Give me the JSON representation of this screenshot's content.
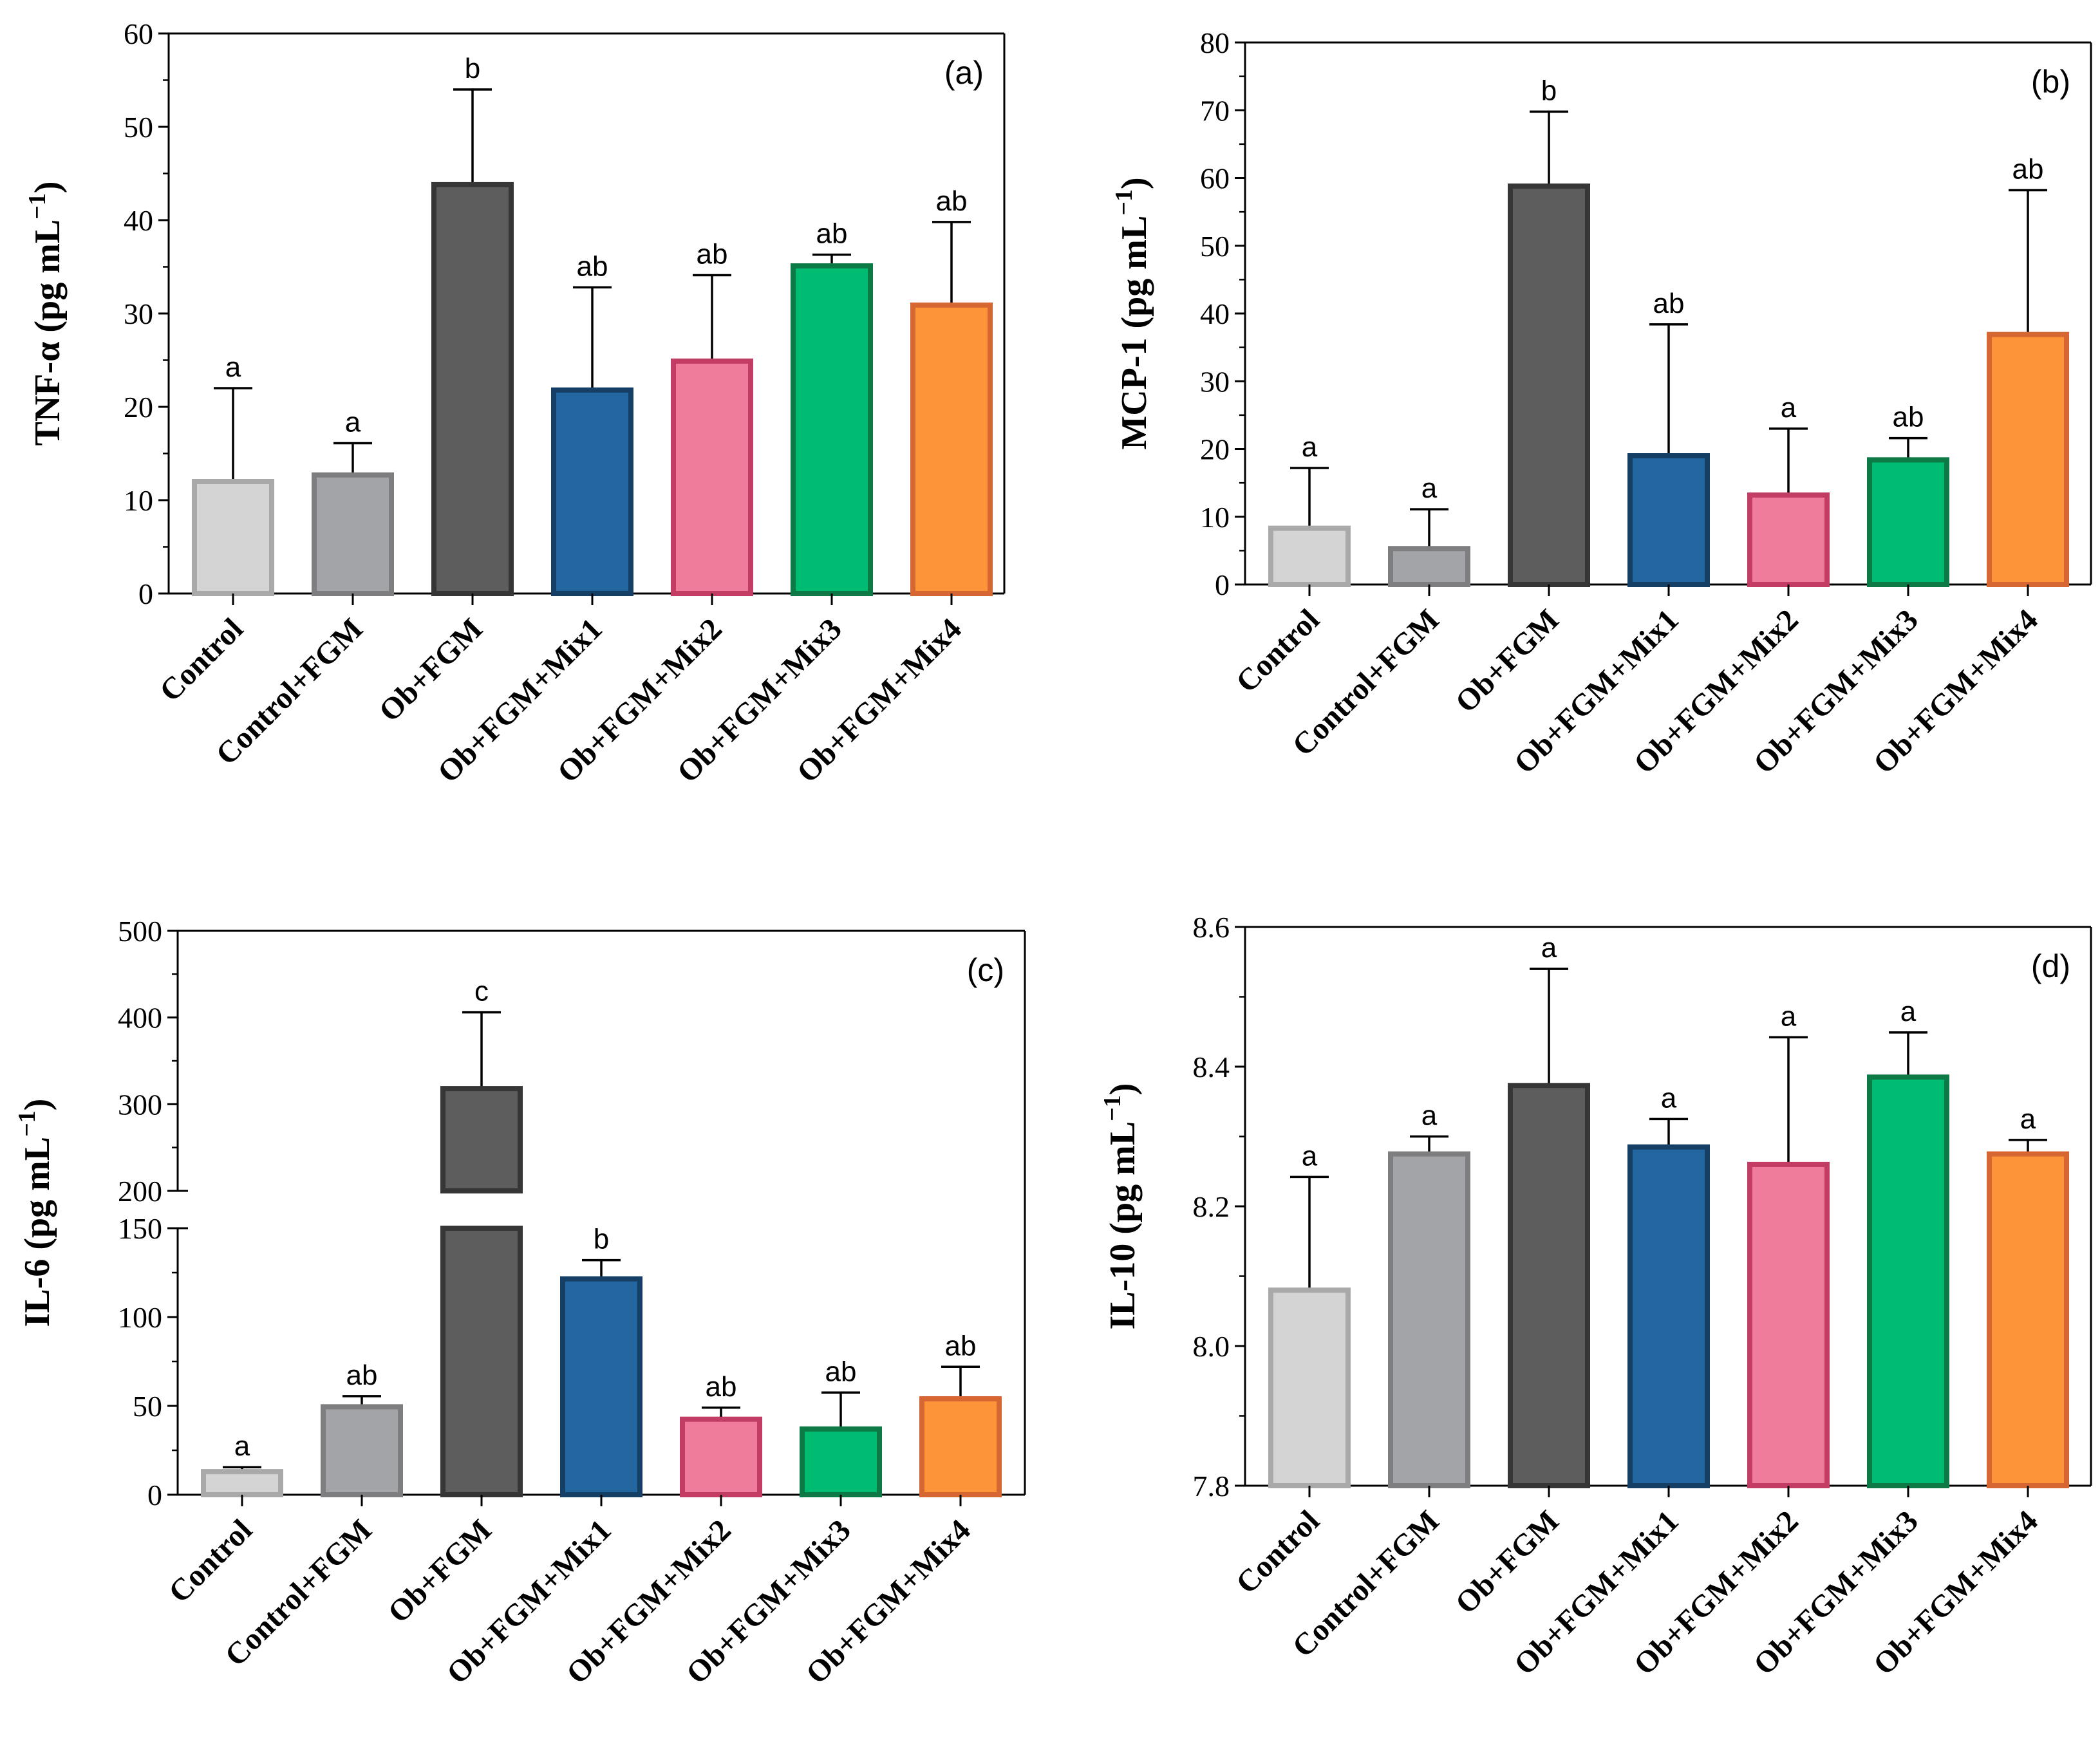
{
  "chart_data": [
    {
      "type": "bar",
      "panel_label": "(a)",
      "ylabel": "TNF-α (pg mL",
      "ylabel_sup": "−1",
      "ylabel_close": ")",
      "ylim": [
        0,
        60
      ],
      "yticks": [
        "0",
        "10",
        "20",
        "30",
        "40",
        "50",
        "60"
      ],
      "categories": [
        "Control",
        "Control+FGM",
        "Ob+FGM",
        "Ob+FGM+Mix1",
        "Ob+FGM+Mix2",
        "Ob+FGM+Mix3",
        "Ob+FGM+Mix4"
      ],
      "values": [
        12,
        12.7,
        43.8,
        21.8,
        24.9,
        35.1,
        30.9
      ],
      "errors": [
        10,
        3.4,
        10.2,
        11,
        9.2,
        1.2,
        8.9
      ],
      "significance": [
        "a",
        "a",
        "b",
        "ab",
        "ab",
        "ab",
        "ab"
      ]
    },
    {
      "type": "bar",
      "panel_label": "(b)",
      "ylabel": "MCP-1 (pg mL",
      "ylabel_sup": "−1",
      "ylabel_close": ")",
      "ylim": [
        0,
        80
      ],
      "yticks": [
        "0",
        "10",
        "20",
        "30",
        "40",
        "50",
        "60",
        "70",
        "80"
      ],
      "categories": [
        "Control",
        "Control+FGM",
        "Ob+FGM",
        "Ob+FGM+Mix1",
        "Ob+FGM+Mix2",
        "Ob+FGM+Mix3",
        "Ob+FGM+Mix4"
      ],
      "values": [
        8.3,
        5.3,
        58.8,
        19,
        13.2,
        18.4,
        36.9
      ],
      "errors": [
        8.9,
        5.8,
        11,
        19.4,
        9.8,
        3.2,
        21.3
      ],
      "significance": [
        "a",
        "a",
        "b",
        "ab",
        "a",
        "ab",
        "ab"
      ]
    },
    {
      "type": "bar",
      "panel_label": "(c)",
      "ylabel": "IL-6 (pg mL",
      "ylabel_sup": "−1",
      "ylabel_close": ")",
      "ylim": [
        0,
        500
      ],
      "axis_break": [
        150,
        200
      ],
      "yticks": [
        "0",
        "50",
        "100",
        "150",
        "200",
        "300",
        "400",
        "500"
      ],
      "categories": [
        "Control",
        "Control+FGM",
        "Ob+FGM",
        "Ob+FGM+Mix1",
        "Ob+FGM+Mix2",
        "Ob+FGM+Mix3",
        "Ob+FGM+Mix4"
      ],
      "values": [
        13,
        49.5,
        318,
        121.5,
        42.5,
        37,
        54
      ],
      "errors": [
        2.5,
        6,
        88,
        10.5,
        6.5,
        20.5,
        18
      ],
      "significance": [
        "a",
        "ab",
        "c",
        "b",
        "ab",
        "ab",
        "ab"
      ]
    },
    {
      "type": "bar",
      "panel_label": "(d)",
      "ylabel": "IL-10 (pg mL",
      "ylabel_sup": "−1",
      "ylabel_close": ")",
      "ylim": [
        7.8,
        8.6
      ],
      "yticks": [
        "7.8",
        "8.0",
        "8.2",
        "8.4",
        "8.6"
      ],
      "categories": [
        "Control",
        "Control+FGM",
        "Ob+FGM",
        "Ob+FGM+Mix1",
        "Ob+FGM+Mix2",
        "Ob+FGM+Mix3",
        "Ob+FGM+Mix4"
      ],
      "values": [
        8.08,
        8.275,
        8.373,
        8.285,
        8.26,
        8.385,
        8.275
      ],
      "errors": [
        0.162,
        0.025,
        0.167,
        0.04,
        0.182,
        0.064,
        0.02
      ],
      "significance": [
        "a",
        "a",
        "a",
        "a",
        "a",
        "a",
        "a"
      ]
    }
  ],
  "colors": {
    "fills": [
      "#d4d4d4",
      "#a3a4a7",
      "#5d5d5d",
      "#2366a0",
      "#f07c9c",
      "#00bb72",
      "#fd9439"
    ],
    "strokes": [
      "#a9a9a9",
      "#7e7e80",
      "#363636",
      "#163f65",
      "#c23c63",
      "#0d7a46",
      "#d66732"
    ],
    "axis": "#000000"
  }
}
